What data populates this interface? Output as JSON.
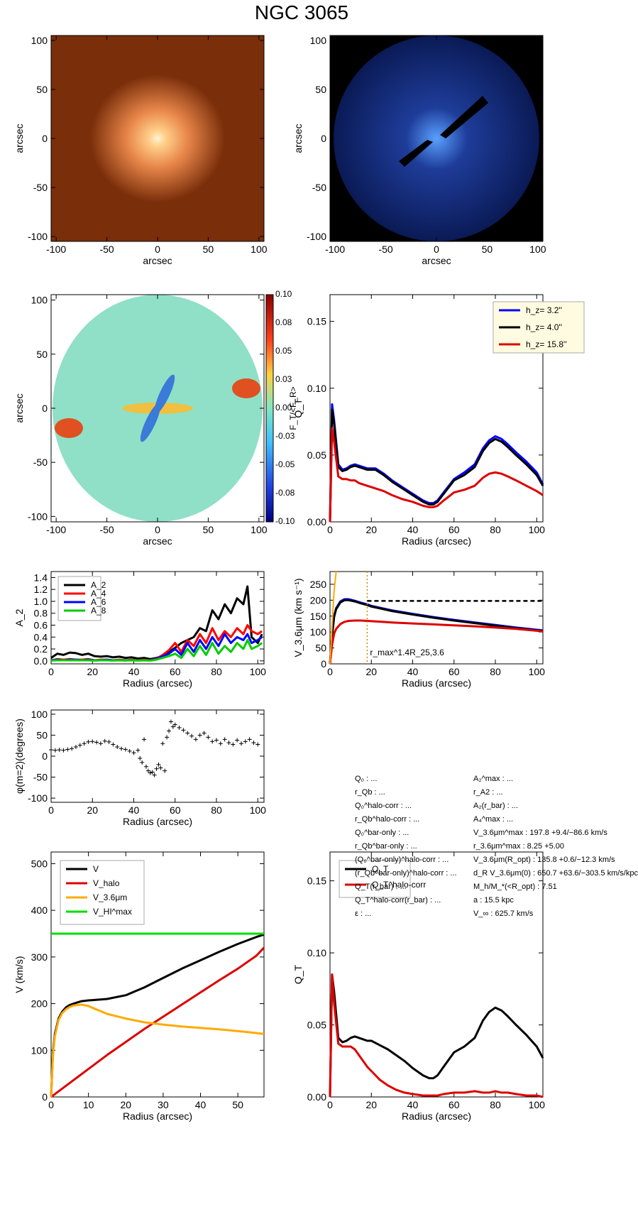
{
  "figure": {
    "title": "NGC 3065"
  },
  "info_left": [
    "Q₀ : ...",
    "r_Qb : ...",
    "Q₀^halo-corr : ...",
    "r_Qb^halo-corr : ...",
    "Q₀^bar-only : ...",
    "r_Qb^bar-only : ...",
    "(Q₀^bar-only)^halo-corr : ...",
    "(r_Qb^bar-only)^halo-corr : ...",
    "Q_T(r_bar) : ...",
    "Q_T^halo-corr(r_bar) : ...",
    "ε : ..."
  ],
  "info_right": [
    "A₂^max : ...",
    "r_A2 : ...",
    "A₂(r_bar) : ...",
    "A₄^max : ...",
    "V_3.6μm^max : 197.8 +9.4/−86.6 km/s",
    "r_3.6μm^max : 8.25 +5.00",
    "V_3.6μm(R_opt) : 135.8 +0.6/−12.3 km/s",
    "d_R V_3.6μm(0) : 650.7 +63.6/−303.5 km/s/kpc",
    "M_h/M_*(<R_opt) : 7.51",
    "a : 15.5 kpc",
    "V_∞ : 625.7 km/s"
  ],
  "chart_data": [
    {
      "id": "image-36um",
      "type": "image",
      "xlabel": "arcsec",
      "ylabel": "arcsec",
      "xlim": [
        -105,
        105
      ],
      "ylim": [
        -105,
        105
      ],
      "xticks": [
        "-100",
        "-50",
        "0",
        "50",
        "100"
      ],
      "yticks": [
        "-100",
        "-50",
        "0",
        "50",
        "100"
      ],
      "colors": {
        "background": "#7a2e0a",
        "core": "#fff4d8",
        "mid": "#e8864a"
      }
    },
    {
      "id": "image-residual",
      "type": "image",
      "xlabel": "arcsec",
      "ylabel": "arcsec",
      "xlim": [
        -105,
        105
      ],
      "ylim": [
        -105,
        105
      ],
      "xticks": [
        "-100",
        "-50",
        "0",
        "50",
        "100"
      ],
      "yticks": [
        "-100",
        "-50",
        "0",
        "50",
        "100"
      ],
      "colors": {
        "background": "#000000",
        "disk": "#0a1a55",
        "bright": "#5aa0ff"
      }
    },
    {
      "id": "force-map",
      "type": "heatmap",
      "xlabel": "arcsec",
      "ylabel": "arcsec",
      "xlim": [
        -105,
        105
      ],
      "ylim": [
        -105,
        105
      ],
      "xticks": [
        "-100",
        "-50",
        "0",
        "50",
        "100"
      ],
      "yticks": [
        "-100",
        "-50",
        "0",
        "50",
        "100"
      ],
      "colorbar": {
        "label": "F_T/<F_R>",
        "ticks": [
          "0.10",
          "0.08",
          "0.05",
          "0.03",
          "0.00",
          "-0.03",
          "-0.05",
          "-0.08",
          "-0.10"
        ],
        "range": [
          -0.1,
          0.1
        ]
      }
    },
    {
      "id": "qt-profiles",
      "type": "line",
      "xlabel": "Radius (arcsec)",
      "ylabel": "Q_T",
      "xlim": [
        0,
        103
      ],
      "ylim": [
        0,
        0.17
      ],
      "xticks": [
        0,
        20,
        40,
        60,
        80,
        100
      ],
      "yticks": [
        "0.00",
        "0.05",
        "0.10",
        "0.15"
      ],
      "x": [
        0,
        1,
        2,
        4,
        6,
        8,
        10,
        12,
        14,
        16,
        18,
        20,
        22,
        24,
        26,
        30,
        35,
        40,
        45,
        48,
        50,
        52,
        55,
        60,
        65,
        70,
        74,
        77,
        80,
        83,
        86,
        90,
        95,
        100,
        103
      ],
      "series": [
        {
          "name": "h_z= 3.2''",
          "color": "#0000ff",
          "values": [
            0,
            0.088,
            0.076,
            0.043,
            0.039,
            0.04,
            0.042,
            0.043,
            0.042,
            0.041,
            0.04,
            0.04,
            0.04,
            0.038,
            0.036,
            0.031,
            0.026,
            0.021,
            0.016,
            0.014,
            0.014,
            0.016,
            0.022,
            0.032,
            0.037,
            0.043,
            0.055,
            0.061,
            0.064,
            0.062,
            0.058,
            0.052,
            0.045,
            0.037,
            0.028
          ]
        },
        {
          "name": "h_z= 4.0''",
          "color": "#000000",
          "values": [
            0,
            0.084,
            0.073,
            0.041,
            0.038,
            0.039,
            0.041,
            0.042,
            0.041,
            0.04,
            0.039,
            0.039,
            0.039,
            0.037,
            0.035,
            0.03,
            0.025,
            0.02,
            0.015,
            0.013,
            0.013,
            0.015,
            0.021,
            0.031,
            0.035,
            0.041,
            0.053,
            0.059,
            0.062,
            0.06,
            0.056,
            0.05,
            0.043,
            0.035,
            0.027
          ]
        },
        {
          "name": "h_z= 15.8''",
          "color": "#dd0000",
          "values": [
            0,
            0.07,
            0.06,
            0.034,
            0.032,
            0.032,
            0.031,
            0.031,
            0.029,
            0.028,
            0.027,
            0.026,
            0.025,
            0.024,
            0.023,
            0.02,
            0.017,
            0.015,
            0.012,
            0.011,
            0.011,
            0.012,
            0.016,
            0.022,
            0.024,
            0.027,
            0.033,
            0.036,
            0.037,
            0.036,
            0.034,
            0.031,
            0.027,
            0.023,
            0.02
          ]
        }
      ]
    },
    {
      "id": "fourier-amplitudes",
      "type": "line",
      "xlabel": "Radius (arcsec)",
      "ylabel": "A_2",
      "xlim": [
        0,
        103
      ],
      "ylim": [
        -0.05,
        1.5
      ],
      "xticks": [
        0,
        20,
        40,
        60,
        80,
        100
      ],
      "yticks": [
        "0.0",
        "0.2",
        "0.4",
        "0.6",
        "0.8",
        "1.0",
        "1.2",
        "1.4"
      ],
      "x": [
        0,
        3,
        6,
        9,
        12,
        15,
        18,
        21,
        24,
        27,
        30,
        33,
        36,
        39,
        42,
        45,
        48,
        51,
        54,
        57,
        60,
        63,
        66,
        69,
        72,
        75,
        78,
        81,
        84,
        87,
        90,
        93,
        95,
        97,
        100,
        102
      ],
      "series": [
        {
          "name": "A_2",
          "color": "#000000",
          "values": [
            0.05,
            0.12,
            0.1,
            0.14,
            0.13,
            0.1,
            0.12,
            0.08,
            0.07,
            0.08,
            0.06,
            0.07,
            0.05,
            0.06,
            0.04,
            0.05,
            0.03,
            0.05,
            0.08,
            0.15,
            0.22,
            0.3,
            0.35,
            0.4,
            0.55,
            0.5,
            0.85,
            0.7,
            0.95,
            0.8,
            1.05,
            0.95,
            1.25,
            0.4,
            0.3,
            0.45
          ]
        },
        {
          "name": "A_4",
          "color": "#ff0000",
          "values": [
            0.01,
            0.03,
            0.02,
            0.03,
            0.02,
            0.02,
            0.03,
            0.01,
            0.02,
            0.02,
            0.01,
            0.02,
            0.01,
            0.02,
            0.01,
            0.02,
            0.01,
            0.04,
            0.1,
            0.18,
            0.3,
            0.15,
            0.35,
            0.25,
            0.45,
            0.3,
            0.55,
            0.35,
            0.5,
            0.4,
            0.55,
            0.45,
            0.6,
            0.5,
            0.45,
            0.5
          ]
        },
        {
          "name": "A_6",
          "color": "#0000ff",
          "values": [
            0.01,
            0.02,
            0.01,
            0.02,
            0.02,
            0.01,
            0.02,
            0.01,
            0.01,
            0.02,
            0.01,
            0.01,
            0.01,
            0.01,
            0.01,
            0.01,
            0.01,
            0.03,
            0.08,
            0.12,
            0.2,
            0.1,
            0.3,
            0.15,
            0.35,
            0.2,
            0.4,
            0.25,
            0.45,
            0.3,
            0.4,
            0.35,
            0.45,
            0.3,
            0.35,
            0.4
          ]
        },
        {
          "name": "A_8",
          "color": "#00cc00",
          "values": [
            0.005,
            0.01,
            0.01,
            0.01,
            0.01,
            0.01,
            0.01,
            0.005,
            0.01,
            0.01,
            0.005,
            0.01,
            0.005,
            0.01,
            0.005,
            0.01,
            0.005,
            0.02,
            0.05,
            0.08,
            0.12,
            0.05,
            0.2,
            0.08,
            0.25,
            0.1,
            0.3,
            0.12,
            0.25,
            0.15,
            0.3,
            0.2,
            0.35,
            0.2,
            0.25,
            0.3
          ]
        }
      ]
    },
    {
      "id": "rotation-curve-36um",
      "type": "line",
      "xlabel": "Radius (arcsec)",
      "ylabel": "V_3.6μm (km s⁻¹)",
      "xlim": [
        0,
        103
      ],
      "ylim": [
        0,
        290
      ],
      "xticks": [
        0,
        20,
        40,
        60,
        80,
        100
      ],
      "yticks": [
        "0",
        "50",
        "100",
        "150",
        "200",
        "250"
      ],
      "annotation": "r_max^1.4R_25,3.6",
      "rmax_x": 18,
      "vmax_dashed": 197.8,
      "x": [
        0,
        1,
        2,
        3,
        5,
        7,
        9,
        12,
        15,
        18,
        20,
        25,
        30,
        40,
        50,
        60,
        70,
        80,
        90,
        100,
        103
      ],
      "series": [
        {
          "name": "",
          "color": "#0000ff",
          "values": [
            0,
            90,
            150,
            175,
            196,
            203,
            203,
            198,
            192,
            187,
            182,
            175,
            168,
            157,
            147,
            138,
            130,
            122,
            114,
            107,
            105
          ]
        },
        {
          "name": "",
          "color": "#000000",
          "values": [
            0,
            88,
            148,
            172,
            193,
            200,
            200,
            196,
            190,
            185,
            180,
            173,
            166,
            155,
            145,
            136,
            128,
            120,
            112,
            105,
            103
          ]
        },
        {
          "name": "",
          "color": "#dd0000",
          "values": [
            0,
            60,
            95,
            110,
            125,
            132,
            135,
            136,
            136,
            135,
            134,
            132,
            130,
            127,
            124,
            121,
            118,
            114,
            110,
            104,
            102
          ]
        }
      ],
      "orange_line": {
        "x": [
          0,
          1,
          2,
          3
        ],
        "values": [
          0,
          120,
          230,
          290
        ]
      }
    },
    {
      "id": "phase-m2",
      "type": "scatter",
      "xlabel": "Radius (arcsec)",
      "ylabel": "φ(m=2)(degrees)",
      "xlim": [
        0,
        103
      ],
      "ylim": [
        -110,
        110
      ],
      "xticks": [
        0,
        20,
        40,
        60,
        80,
        100
      ],
      "yticks": [
        "-100",
        "-50",
        "0",
        "50",
        "100"
      ],
      "x": [
        0,
        2,
        4,
        6,
        8,
        10,
        12,
        14,
        16,
        18,
        20,
        22,
        24,
        26,
        28,
        30,
        32,
        34,
        36,
        38,
        40,
        42,
        43,
        44,
        45,
        46,
        47,
        48,
        49,
        50,
        51,
        52,
        53,
        54,
        55,
        56,
        57,
        58,
        59,
        60,
        62,
        64,
        66,
        68,
        70,
        72,
        74,
        76,
        78,
        80,
        82,
        84,
        86,
        88,
        90,
        92,
        94,
        96,
        98,
        100
      ],
      "y": [
        15,
        14,
        15,
        14,
        16,
        18,
        22,
        26,
        30,
        34,
        35,
        33,
        30,
        36,
        34,
        28,
        22,
        18,
        16,
        12,
        8,
        14,
        -5,
        -15,
        40,
        -25,
        -35,
        -40,
        -38,
        -45,
        -30,
        -20,
        -28,
        30,
        -35,
        45,
        60,
        82,
        70,
        75,
        68,
        62,
        55,
        48,
        40,
        50,
        55,
        45,
        35,
        38,
        30,
        40,
        32,
        28,
        38,
        30,
        35,
        40,
        32,
        28
      ]
    },
    {
      "id": "halo-decomposition",
      "type": "line",
      "xlabel": "Radius (arcsec)",
      "ylabel": "V (km/s)",
      "xlim": [
        0,
        57
      ],
      "ylim": [
        0,
        525
      ],
      "xticks": [
        0,
        10,
        20,
        30,
        40,
        50
      ],
      "yticks": [
        "0",
        "100",
        "200",
        "300",
        "400",
        "500"
      ],
      "x": [
        0,
        0.5,
        1,
        2,
        3,
        4,
        5,
        6,
        8,
        10,
        12,
        15,
        20,
        25,
        30,
        35,
        40,
        45,
        50,
        55,
        57
      ],
      "series": [
        {
          "name": "V",
          "color": "#000000",
          "values": [
            0,
            95,
            135,
            168,
            183,
            192,
            197,
            200,
            205,
            207,
            208,
            210,
            218,
            235,
            255,
            275,
            293,
            311,
            328,
            343,
            348
          ]
        },
        {
          "name": "V_halo",
          "color": "#dd0000",
          "values": [
            0,
            3,
            6,
            12,
            18,
            24,
            30,
            36,
            48,
            60,
            72,
            90,
            118,
            146,
            172,
            198,
            224,
            250,
            275,
            303,
            320
          ]
        },
        {
          "name": "V_3.6μm",
          "color": "#ffaa00",
          "values": [
            0,
            90,
            130,
            165,
            180,
            188,
            193,
            196,
            198,
            195,
            188,
            178,
            168,
            160,
            155,
            151,
            148,
            145,
            141,
            137,
            135
          ]
        },
        {
          "name": "V_HI^max",
          "color": "#00dd00",
          "values": [
            350,
            350,
            350,
            350,
            350,
            350,
            350,
            350,
            350,
            350,
            350,
            350,
            350,
            350,
            350,
            350,
            350,
            350,
            350,
            350,
            350
          ]
        }
      ]
    },
    {
      "id": "qt-halo-corr",
      "type": "line",
      "xlabel": "Radius (arcsec)",
      "ylabel": "Q_T",
      "xlim": [
        0,
        103
      ],
      "ylim": [
        0,
        0.17
      ],
      "xticks": [
        0,
        20,
        40,
        60,
        80,
        100
      ],
      "yticks": [
        "0.00",
        "0.05",
        "0.10",
        "0.15"
      ],
      "x": [
        0,
        1,
        2,
        4,
        6,
        8,
        10,
        12,
        14,
        16,
        18,
        20,
        24,
        28,
        32,
        36,
        40,
        45,
        48,
        50,
        52,
        55,
        60,
        65,
        70,
        74,
        77,
        80,
        83,
        86,
        90,
        95,
        100,
        103
      ],
      "series": [
        {
          "name": "Q_T",
          "color": "#000000",
          "values": [
            0,
            0.085,
            0.073,
            0.041,
            0.038,
            0.039,
            0.041,
            0.042,
            0.041,
            0.04,
            0.039,
            0.039,
            0.036,
            0.033,
            0.029,
            0.025,
            0.02,
            0.015,
            0.013,
            0.013,
            0.015,
            0.021,
            0.031,
            0.035,
            0.041,
            0.053,
            0.059,
            0.062,
            0.06,
            0.056,
            0.05,
            0.043,
            0.035,
            0.027
          ]
        },
        {
          "name": "Q_T^halo-corr",
          "color": "#dd0000",
          "values": [
            0,
            0.085,
            0.065,
            0.037,
            0.035,
            0.035,
            0.035,
            0.033,
            0.029,
            0.025,
            0.021,
            0.018,
            0.012,
            0.008,
            0.005,
            0.003,
            0.002,
            0.001,
            0.001,
            0.001,
            0.001,
            0.002,
            0.003,
            0.003,
            0.004,
            0.003,
            0.003,
            0.004,
            0.003,
            0.003,
            0.002,
            0.001,
            0.001,
            0.0
          ]
        }
      ]
    }
  ]
}
